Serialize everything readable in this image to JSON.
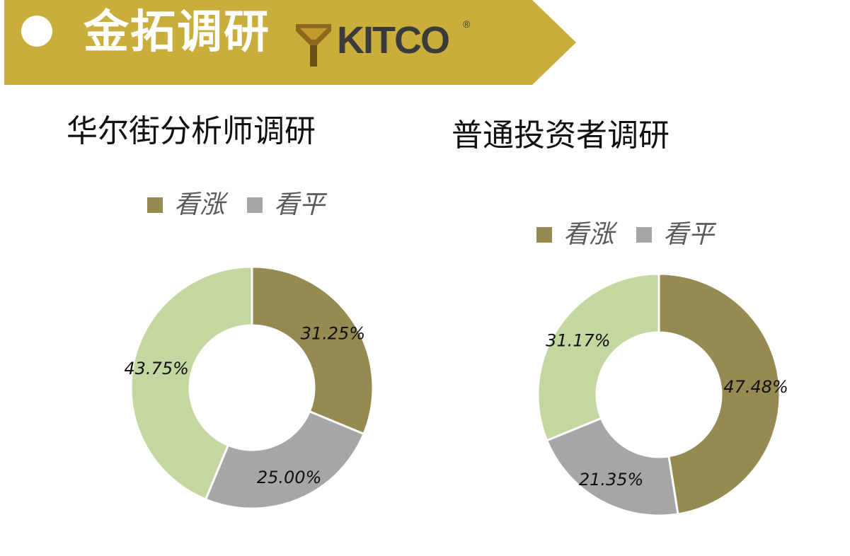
{
  "header": {
    "title": "金拓调研",
    "logo_text": "KITCO",
    "logo_mark": "®"
  },
  "colors": {
    "banner": "#C9AE3B",
    "bullish": "#958A51",
    "flat": "#A6A6A6",
    "bearish": "#C4D7A0"
  },
  "chart_data": [
    {
      "type": "pie",
      "title": "华尔街分析师调研",
      "legend": [
        "看涨",
        "看平"
      ],
      "legend_placement": "top",
      "categories": [
        "看涨",
        "看平",
        ""
      ],
      "values": [
        31.25,
        25.0,
        43.75
      ],
      "labels": [
        "31.25%",
        "25.00%",
        "43.75%"
      ]
    },
    {
      "type": "pie",
      "title": "普通投资者调研",
      "legend": [
        "看涨",
        "看平"
      ],
      "legend_placement": "top",
      "categories": [
        "看涨",
        "看平",
        ""
      ],
      "values": [
        47.48,
        21.35,
        31.17
      ],
      "labels": [
        "47.48%",
        "21.35%",
        "31.17%"
      ]
    }
  ]
}
